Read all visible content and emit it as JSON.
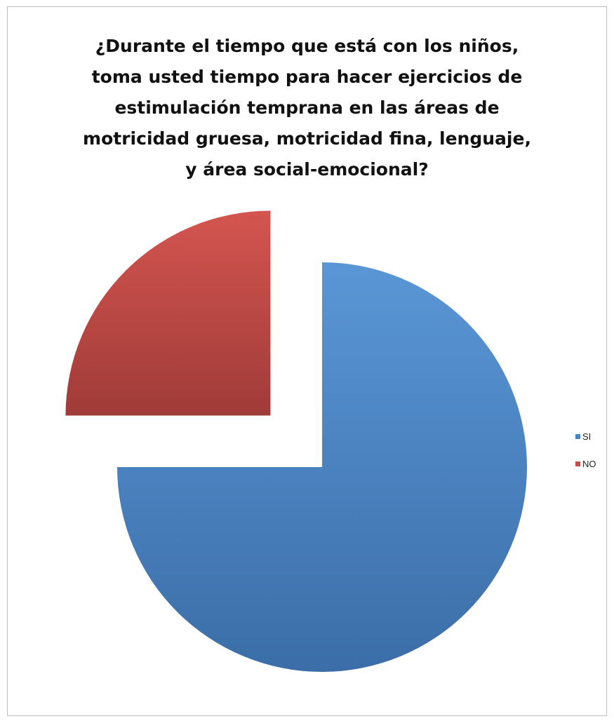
{
  "chart_data": {
    "type": "pie",
    "title": "¿Durante el tiempo que está con los niños,\ntoma usted tiempo para hacer ejercicios de\nestimulación temprana en las áreas de\nmotricidad gruesa, motricidad fina, lenguaje,\ny área social-emocional?",
    "exploded": true,
    "start_angle_deg": 0,
    "direction": "clockwise",
    "legend_position": "right",
    "slices": [
      {
        "label": "SI",
        "value": 75,
        "color": "#4a83c4"
      },
      {
        "label": "NO",
        "value": 25,
        "color": "#c0504d"
      }
    ]
  }
}
